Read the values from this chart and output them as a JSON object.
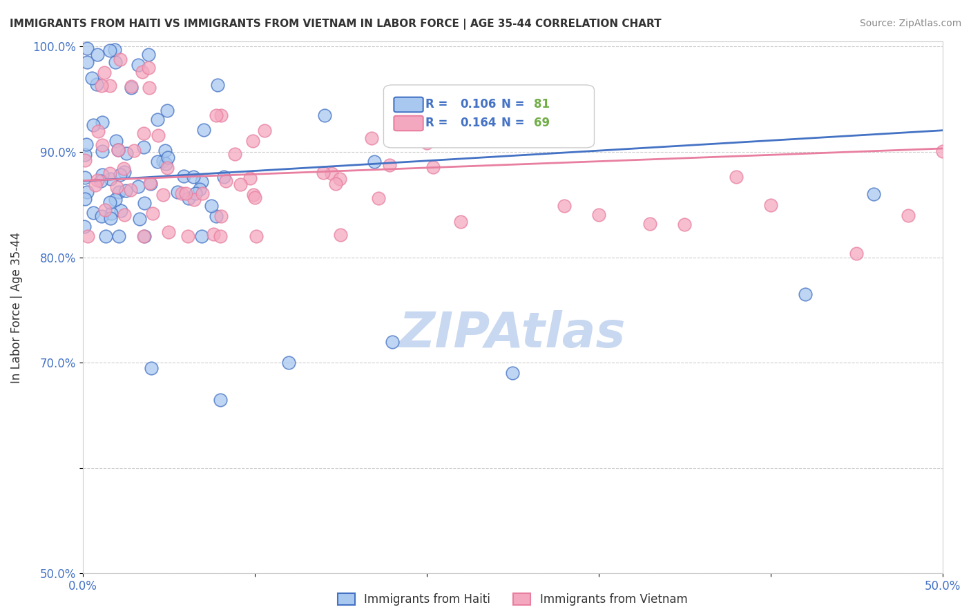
{
  "title": "IMMIGRANTS FROM HAITI VS IMMIGRANTS FROM VIETNAM IN LABOR FORCE | AGE 35-44 CORRELATION CHART",
  "source": "Source: ZipAtlas.com",
  "ylabel": "In Labor Force | Age 35-44",
  "xlim": [
    0.0,
    0.5
  ],
  "ylim": [
    0.5,
    1.005
  ],
  "haiti_color": "#A8C8F0",
  "vietnam_color": "#F4A8C0",
  "haiti_r": 0.106,
  "haiti_n": 81,
  "vietnam_r": 0.164,
  "vietnam_n": 69,
  "haiti_line_color": "#4472C4",
  "vietnam_line_color": "#E87FA0",
  "legend_r_color": "#4472C4",
  "legend_n_color": "#70AD47",
  "watermark": "ZIPAtlas",
  "watermark_color": "#C8D8F0",
  "tick_color": "#4472C4"
}
